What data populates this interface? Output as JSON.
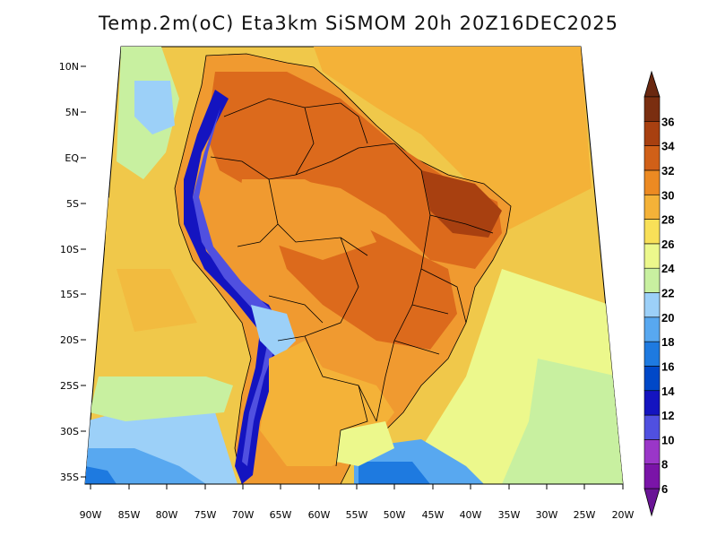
{
  "title": "Temp.2m(oC) Eta3km SiSMOM 20h 20Z16DEC2025",
  "map": {
    "lon_labels": [
      "90W",
      "85W",
      "80W",
      "75W",
      "70W",
      "65W",
      "60W",
      "55W",
      "50W",
      "45W",
      "40W",
      "35W",
      "30W",
      "25W",
      "20W"
    ],
    "lat_labels": [
      "10N",
      "5N",
      "EQ",
      "5S",
      "10S",
      "15S",
      "20S",
      "25S",
      "30S",
      "35S"
    ]
  },
  "colorbar": {
    "levels": [
      "6",
      "8",
      "10",
      "12",
      "14",
      "16",
      "18",
      "20",
      "22",
      "24",
      "26",
      "28",
      "30",
      "32",
      "34",
      "36"
    ],
    "colors": [
      "#7a14a8",
      "#9a36c8",
      "#5050e0",
      "#1414c0",
      "#0048c8",
      "#1e7ae0",
      "#58a8f0",
      "#9cd0f8",
      "#c8f0a0",
      "#ecf88c",
      "#f8e058",
      "#f4b238",
      "#ec8a22",
      "#d06018",
      "#a84010",
      "#7a2e10"
    ]
  },
  "palette": {
    "ocean_base": "#f0c84a",
    "land_hot": "#dc6a1c",
    "land_warm": "#f09a30"
  }
}
